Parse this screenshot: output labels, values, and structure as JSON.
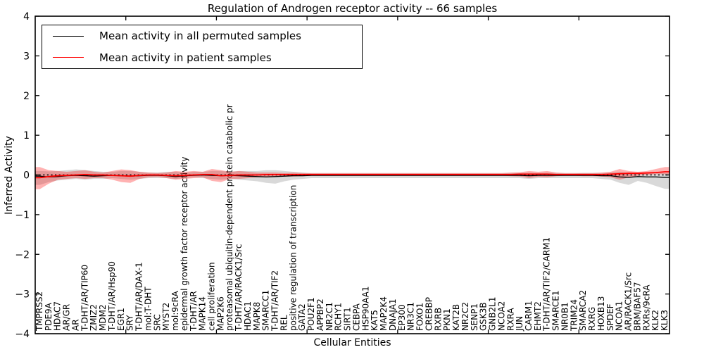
{
  "title": "Regulation of Androgen receptor activity -- 66 samples",
  "legend": {
    "entries": [
      {
        "label": "Mean activity in all permuted samples",
        "color": "#000000",
        "line_width": 1.4
      },
      {
        "label": "Mean activity in patient samples",
        "color": "#ff0000",
        "line_width": 1.8
      }
    ]
  },
  "chart_data": {
    "type": "line",
    "title": "Regulation of Androgen receptor activity -- 66 samples",
    "xlabel": "Cellular Entities",
    "ylabel": "Inferred Activity",
    "ylim": [
      -4,
      4
    ],
    "xlim": [
      0,
      70
    ],
    "yticks": [
      -4,
      -3,
      -2,
      -1,
      0,
      1,
      2,
      3,
      4
    ],
    "xticks": [
      10,
      20,
      30,
      40,
      50,
      60
    ],
    "grid": false,
    "legend_position": "upper left",
    "zero_line": {
      "y": 0,
      "style": "dotted",
      "color": "#000000"
    },
    "categories": [
      "TMPRSS2",
      "PDE9A",
      "HDAC7",
      "AR/GR",
      "AR",
      "T-DHT/AR/TIP60",
      "ZMIZ2",
      "MDM2",
      "T-DHT/AR/Hsp90",
      "EGR1",
      "SRY",
      "T-DHT/AR/DAX-1",
      "mol:T-DHT",
      "SRC",
      "MYST2",
      "mol:9cRA",
      "epidermal growth factor receptor activity",
      "T-DHT/AR",
      "MAPK14",
      "cell proliferation",
      "MAP2K6",
      "proteasomal ubiquitin-dependent protein catabolic pr",
      "T-DHT/AR/RACK1/Src",
      "HDAC1",
      "MAPK8",
      "SMARCC1",
      "T-DHT/AR/TIF2",
      "REL",
      "positive regulation of transcription",
      "GATA2",
      "POU2F1",
      "APPBP2",
      "NR2C1",
      "RCHY1",
      "SIRT1",
      "CEBPA",
      "HSP90AA1",
      "KAT5",
      "MAP2K4",
      "DNAJA1",
      "EP300",
      "NR3C1",
      "FOXO1",
      "CREBBP",
      "RXRB",
      "PKN1",
      "KAT2B",
      "NR2C2",
      "SENP1",
      "GSK3B",
      "GNB2L1",
      "NCOA2",
      "RXRA",
      "JUN",
      "CARM1",
      "EHMT2",
      "T-DHT/AR/TIF2/CARM1",
      "SMARCE1",
      "NR0B1",
      "TRIM24",
      "SMARCA2",
      "RXRG",
      "HOXB13",
      "SPDEF",
      "NCOA1",
      "AR/RACK1/Src",
      "BRM/BAF57",
      "RXRs/9cRA",
      "KLK2",
      "KLK3"
    ],
    "series": [
      {
        "name": "Mean activity in all permuted samples",
        "color": "#000000",
        "line_width": 1.4,
        "band_color": "#777777",
        "band_alpha": 0.28,
        "values": [
          -0.03,
          -0.05,
          -0.04,
          -0.02,
          -0.01,
          -0.02,
          -0.03,
          -0.02,
          -0.01,
          -0.02,
          -0.03,
          -0.02,
          -0.01,
          -0.01,
          -0.02,
          -0.04,
          -0.02,
          -0.01,
          0.0,
          -0.01,
          -0.02,
          -0.01,
          -0.02,
          -0.03,
          -0.04,
          -0.05,
          -0.04,
          -0.03,
          -0.02,
          -0.02,
          -0.01,
          -0.01,
          -0.01,
          -0.01,
          -0.01,
          -0.01,
          -0.01,
          -0.01,
          -0.01,
          -0.01,
          -0.01,
          -0.01,
          -0.01,
          -0.01,
          -0.01,
          -0.01,
          -0.01,
          -0.01,
          -0.01,
          -0.01,
          -0.01,
          -0.01,
          -0.01,
          -0.01,
          -0.02,
          -0.01,
          -0.01,
          -0.01,
          -0.01,
          -0.01,
          -0.01,
          -0.01,
          -0.02,
          -0.02,
          -0.05,
          -0.06,
          -0.04,
          -0.05,
          -0.05,
          -0.06
        ],
        "band_upper": [
          0.1,
          0.09,
          0.1,
          0.12,
          0.14,
          0.12,
          0.1,
          0.08,
          0.08,
          0.1,
          0.1,
          0.08,
          0.06,
          0.06,
          0.08,
          0.08,
          0.06,
          0.08,
          0.08,
          0.1,
          0.1,
          0.08,
          0.1,
          0.1,
          0.1,
          0.12,
          0.12,
          0.1,
          0.08,
          0.06,
          0.04,
          0.04,
          0.04,
          0.04,
          0.04,
          0.04,
          0.04,
          0.04,
          0.04,
          0.04,
          0.04,
          0.04,
          0.04,
          0.04,
          0.04,
          0.04,
          0.04,
          0.04,
          0.04,
          0.04,
          0.04,
          0.04,
          0.05,
          0.05,
          0.06,
          0.05,
          0.06,
          0.05,
          0.04,
          0.04,
          0.05,
          0.05,
          0.05,
          0.06,
          0.08,
          0.06,
          0.05,
          0.05,
          0.05,
          0.05
        ],
        "band_lower": [
          -0.25,
          -0.18,
          -0.14,
          -0.12,
          -0.1,
          -0.12,
          -0.1,
          -0.1,
          -0.08,
          -0.1,
          -0.12,
          -0.1,
          -0.08,
          -0.08,
          -0.08,
          -0.1,
          -0.08,
          -0.06,
          -0.08,
          -0.1,
          -0.12,
          -0.1,
          -0.12,
          -0.14,
          -0.16,
          -0.2,
          -0.22,
          -0.16,
          -0.12,
          -0.1,
          -0.08,
          -0.08,
          -0.08,
          -0.08,
          -0.08,
          -0.08,
          -0.08,
          -0.08,
          -0.08,
          -0.08,
          -0.08,
          -0.08,
          -0.08,
          -0.08,
          -0.08,
          -0.08,
          -0.08,
          -0.08,
          -0.08,
          -0.08,
          -0.08,
          -0.08,
          -0.08,
          -0.08,
          -0.1,
          -0.08,
          -0.08,
          -0.08,
          -0.08,
          -0.08,
          -0.08,
          -0.08,
          -0.1,
          -0.12,
          -0.2,
          -0.25,
          -0.15,
          -0.2,
          -0.28,
          -0.35
        ]
      },
      {
        "name": "Mean activity in patient samples",
        "color": "#ff0000",
        "line_width": 1.8,
        "band_color": "#ff0000",
        "band_alpha": 0.3,
        "values": [
          -0.07,
          -0.04,
          -0.02,
          -0.01,
          0.0,
          0.01,
          0.0,
          0.0,
          -0.01,
          -0.02,
          -0.03,
          -0.01,
          0.0,
          0.0,
          -0.01,
          -0.02,
          -0.01,
          0.0,
          0.01,
          0.01,
          -0.02,
          -0.01,
          0.0,
          0.0,
          0.0,
          0.01,
          0.01,
          0.01,
          0.01,
          0.01,
          0.01,
          0.01,
          0.01,
          0.01,
          0.01,
          0.01,
          0.01,
          0.01,
          0.01,
          0.01,
          0.01,
          0.01,
          0.01,
          0.01,
          0.01,
          0.01,
          0.01,
          0.01,
          0.01,
          0.01,
          0.01,
          0.01,
          0.01,
          0.02,
          0.02,
          0.02,
          0.02,
          0.01,
          0.01,
          0.01,
          0.01,
          0.01,
          0.01,
          0.02,
          0.03,
          0.04,
          0.04,
          0.05,
          0.06,
          0.08
        ],
        "band_upper": [
          0.2,
          0.12,
          0.1,
          0.08,
          0.1,
          0.12,
          0.08,
          0.06,
          0.1,
          0.14,
          0.12,
          0.08,
          0.06,
          0.05,
          0.06,
          0.1,
          0.08,
          0.1,
          0.08,
          0.15,
          0.12,
          0.08,
          0.1,
          0.08,
          0.06,
          0.06,
          0.06,
          0.05,
          0.06,
          0.05,
          0.05,
          0.05,
          0.05,
          0.05,
          0.05,
          0.05,
          0.05,
          0.05,
          0.05,
          0.05,
          0.05,
          0.05,
          0.05,
          0.05,
          0.05,
          0.05,
          0.05,
          0.05,
          0.05,
          0.05,
          0.05,
          0.05,
          0.06,
          0.07,
          0.1,
          0.08,
          0.1,
          0.06,
          0.05,
          0.05,
          0.05,
          0.05,
          0.06,
          0.08,
          0.15,
          0.1,
          0.08,
          0.1,
          0.15,
          0.2
        ],
        "band_lower": [
          -0.36,
          -0.22,
          -0.12,
          -0.1,
          -0.08,
          -0.1,
          -0.08,
          -0.08,
          -0.12,
          -0.18,
          -0.2,
          -0.1,
          -0.06,
          -0.05,
          -0.08,
          -0.12,
          -0.1,
          -0.08,
          -0.06,
          -0.15,
          -0.18,
          -0.1,
          -0.1,
          -0.08,
          -0.06,
          -0.05,
          -0.05,
          -0.04,
          -0.04,
          -0.03,
          -0.02,
          -0.02,
          -0.02,
          -0.02,
          -0.02,
          -0.02,
          -0.02,
          -0.02,
          -0.02,
          -0.02,
          -0.02,
          -0.02,
          -0.02,
          -0.02,
          -0.02,
          -0.02,
          -0.02,
          -0.02,
          -0.02,
          -0.02,
          -0.02,
          -0.02,
          -0.03,
          -0.04,
          -0.08,
          -0.05,
          -0.06,
          -0.03,
          -0.02,
          -0.02,
          -0.03,
          -0.03,
          -0.04,
          -0.06,
          -0.12,
          -0.06,
          -0.02,
          0.0,
          0.02,
          0.02
        ]
      }
    ]
  }
}
